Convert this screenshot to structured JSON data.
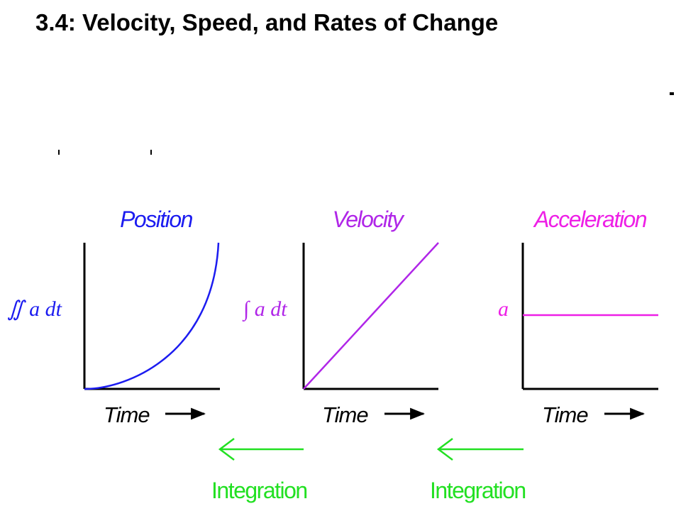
{
  "title": "3.4: Velocity, Speed, and Rates of Change",
  "colors": {
    "position": "#1c1cf0",
    "velocity": "#b026e8",
    "acceleration": "#ee1fe6",
    "integration": "#22e022",
    "axis": "#000000"
  },
  "panels": [
    {
      "title": "Position",
      "y_label": "∬ a dt",
      "x_label": "Time",
      "curve": "quadratic"
    },
    {
      "title": "Velocity",
      "y_label": "∫ a dt",
      "x_label": "Time",
      "curve": "linear"
    },
    {
      "title": "Acceleration",
      "y_label": "a",
      "x_label": "Time",
      "curve": "constant"
    }
  ],
  "integration_arrows": [
    {
      "label": "Integration",
      "direction": "left"
    },
    {
      "label": "Integration",
      "direction": "left"
    }
  ]
}
